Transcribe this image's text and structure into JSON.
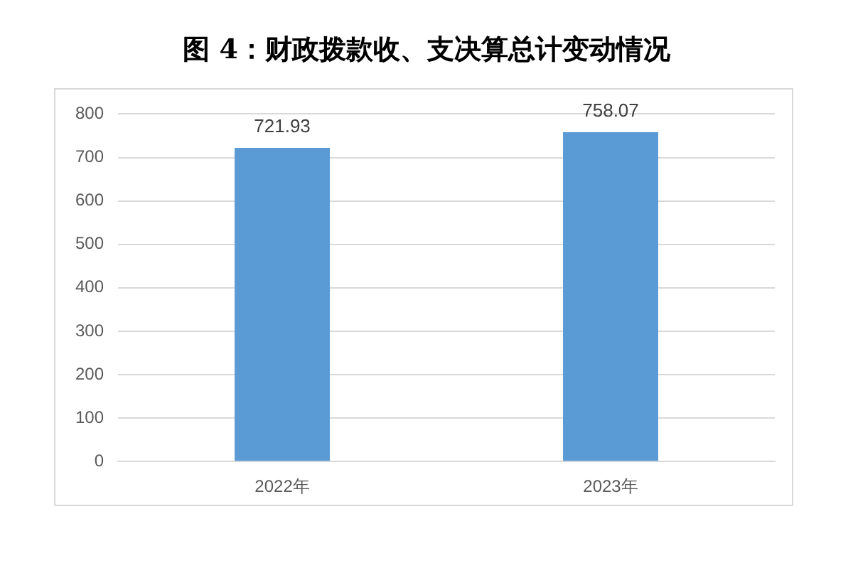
{
  "chart_data": {
    "type": "bar",
    "title": "图 4：财政拨款收、支决算总计变动情况",
    "categories": [
      "2022年",
      "2023年"
    ],
    "values": [
      721.93,
      758.07
    ],
    "color": "#5b9bd5",
    "ylim": [
      0,
      800
    ],
    "yticks": [
      0,
      100,
      200,
      300,
      400,
      500,
      600,
      700,
      800
    ],
    "grid": "y",
    "data_labels": true
  }
}
